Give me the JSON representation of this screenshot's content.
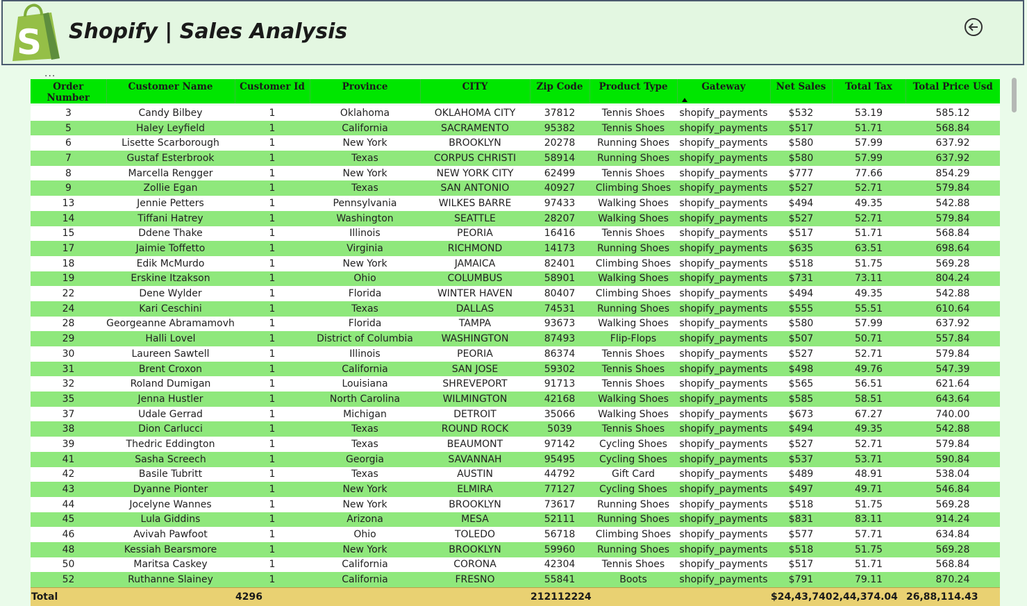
{
  "header": {
    "title": "Shopify | Sales Analysis",
    "logo_letter": "S"
  },
  "colors": {
    "header_bg": "#e3f7e1",
    "table_header_bg": "#00e600",
    "row_alt_bg": "#8fe87c",
    "total_bg": "#e9d172",
    "logo_green": "#95bf47"
  },
  "table": {
    "columns": [
      "Order Number",
      "Customer Name",
      "Customer Id",
      "Province",
      "CITY",
      "Zip Code",
      "Product Type",
      "Gateway",
      "Net Sales",
      "Total Tax",
      "Total Price Usd"
    ],
    "sorted_column": "Gateway",
    "rows": [
      [
        "3",
        "Candy Bilbey",
        "1",
        "Oklahoma",
        "OKLAHOMA CITY",
        "37812",
        "Tennis Shoes",
        "shopify_payments",
        "$532",
        "53.19",
        "585.12"
      ],
      [
        "5",
        "Haley Leyfield",
        "1",
        "California",
        "SACRAMENTO",
        "95382",
        "Tennis Shoes",
        "shopify_payments",
        "$517",
        "51.71",
        "568.84"
      ],
      [
        "6",
        "Lisette Scarborough",
        "1",
        "New York",
        "BROOKLYN",
        "20278",
        "Running Shoes",
        "shopify_payments",
        "$580",
        "57.99",
        "637.92"
      ],
      [
        "7",
        "Gustaf Esterbrook",
        "1",
        "Texas",
        "CORPUS CHRISTI",
        "58914",
        "Running Shoes",
        "shopify_payments",
        "$580",
        "57.99",
        "637.92"
      ],
      [
        "8",
        "Marcella Rengger",
        "1",
        "New York",
        "NEW YORK CITY",
        "62499",
        "Tennis Shoes",
        "shopify_payments",
        "$777",
        "77.66",
        "854.29"
      ],
      [
        "9",
        "Zollie Egan",
        "1",
        "Texas",
        "SAN ANTONIO",
        "40927",
        "Climbing Shoes",
        "shopify_payments",
        "$527",
        "52.71",
        "579.84"
      ],
      [
        "13",
        "Jennie Petters",
        "1",
        "Pennsylvania",
        "WILKES BARRE",
        "97433",
        "Walking Shoes",
        "shopify_payments",
        "$494",
        "49.35",
        "542.88"
      ],
      [
        "14",
        "Tiffani Hatrey",
        "1",
        "Washington",
        "SEATTLE",
        "28207",
        "Walking Shoes",
        "shopify_payments",
        "$527",
        "52.71",
        "579.84"
      ],
      [
        "15",
        "Ddene Thake",
        "1",
        "Illinois",
        "PEORIA",
        "16416",
        "Tennis Shoes",
        "shopify_payments",
        "$517",
        "51.71",
        "568.84"
      ],
      [
        "17",
        "Jaimie Toffetto",
        "1",
        "Virginia",
        "RICHMOND",
        "14173",
        "Running Shoes",
        "shopify_payments",
        "$635",
        "63.51",
        "698.64"
      ],
      [
        "18",
        "Edik McMurdo",
        "1",
        "New York",
        "JAMAICA",
        "82401",
        "Climbing Shoes",
        "shopify_payments",
        "$518",
        "51.75",
        "569.28"
      ],
      [
        "19",
        "Erskine Itzakson",
        "1",
        "Ohio",
        "COLUMBUS",
        "58901",
        "Walking Shoes",
        "shopify_payments",
        "$731",
        "73.11",
        "804.24"
      ],
      [
        "22",
        "Dene Wylder",
        "1",
        "Florida",
        "WINTER HAVEN",
        "80407",
        "Climbing Shoes",
        "shopify_payments",
        "$494",
        "49.35",
        "542.88"
      ],
      [
        "24",
        "Kari Ceschini",
        "1",
        "Texas",
        "DALLAS",
        "74531",
        "Running Shoes",
        "shopify_payments",
        "$555",
        "55.51",
        "610.64"
      ],
      [
        "28",
        "Georgeanne Abramamovh",
        "1",
        "Florida",
        "TAMPA",
        "93673",
        "Walking Shoes",
        "shopify_payments",
        "$580",
        "57.99",
        "637.92"
      ],
      [
        "29",
        "Halli Lovel",
        "1",
        "District of Columbia",
        "WASHINGTON",
        "87493",
        "Flip-Flops",
        "shopify_payments",
        "$507",
        "50.71",
        "557.84"
      ],
      [
        "30",
        "Laureen Sawtell",
        "1",
        "Illinois",
        "PEORIA",
        "86374",
        "Tennis Shoes",
        "shopify_payments",
        "$527",
        "52.71",
        "579.84"
      ],
      [
        "31",
        "Brent Croxon",
        "1",
        "California",
        "SAN JOSE",
        "59302",
        "Tennis Shoes",
        "shopify_payments",
        "$498",
        "49.76",
        "547.39"
      ],
      [
        "32",
        "Roland Dumigan",
        "1",
        "Louisiana",
        "SHREVEPORT",
        "91713",
        "Tennis Shoes",
        "shopify_payments",
        "$565",
        "56.51",
        "621.64"
      ],
      [
        "35",
        "Jenna Hustler",
        "1",
        "North Carolina",
        "WILMINGTON",
        "42168",
        "Walking Shoes",
        "shopify_payments",
        "$585",
        "58.51",
        "643.64"
      ],
      [
        "37",
        "Udale Gerrad",
        "1",
        "Michigan",
        "DETROIT",
        "35066",
        "Walking Shoes",
        "shopify_payments",
        "$673",
        "67.27",
        "740.00"
      ],
      [
        "38",
        "Dion Carlucci",
        "1",
        "Texas",
        "ROUND ROCK",
        "5039",
        "Tennis Shoes",
        "shopify_payments",
        "$494",
        "49.35",
        "542.88"
      ],
      [
        "39",
        "Thedric Eddington",
        "1",
        "Texas",
        "BEAUMONT",
        "97142",
        "Cycling Shoes",
        "shopify_payments",
        "$527",
        "52.71",
        "579.84"
      ],
      [
        "41",
        "Sasha Screech",
        "1",
        "Georgia",
        "SAVANNAH",
        "95495",
        "Cycling Shoes",
        "shopify_payments",
        "$537",
        "53.71",
        "590.84"
      ],
      [
        "42",
        "Basile Tubritt",
        "1",
        "Texas",
        "AUSTIN",
        "44792",
        "Gift Card",
        "shopify_payments",
        "$489",
        "48.91",
        "538.04"
      ],
      [
        "43",
        "Dyanne Pionter",
        "1",
        "New York",
        "ELMIRA",
        "77127",
        "Cycling Shoes",
        "shopify_payments",
        "$497",
        "49.71",
        "546.84"
      ],
      [
        "44",
        "Jocelyne Wannes",
        "1",
        "New York",
        "BROOKLYN",
        "73617",
        "Running Shoes",
        "shopify_payments",
        "$518",
        "51.75",
        "569.28"
      ],
      [
        "45",
        "Lula Giddins",
        "1",
        "Arizona",
        "MESA",
        "52111",
        "Running Shoes",
        "shopify_payments",
        "$831",
        "83.11",
        "914.24"
      ],
      [
        "46",
        "Avivah Pawfoot",
        "1",
        "Ohio",
        "TOLEDO",
        "56718",
        "Climbing Shoes",
        "shopify_payments",
        "$577",
        "57.71",
        "634.84"
      ],
      [
        "48",
        "Kessiah Bearsmore",
        "1",
        "New York",
        "BROOKLYN",
        "59960",
        "Running Shoes",
        "shopify_payments",
        "$518",
        "51.75",
        "569.28"
      ],
      [
        "50",
        "Maritsa Caskey",
        "1",
        "California",
        "CORONA",
        "42304",
        "Tennis Shoes",
        "shopify_payments",
        "$517",
        "51.71",
        "568.84"
      ],
      [
        "52",
        "Ruthanne Slainey",
        "1",
        "California",
        "FRESNO",
        "55841",
        "Boots",
        "shopify_payments",
        "$791",
        "79.11",
        "870.24"
      ]
    ],
    "total": [
      "Total",
      "",
      "4296",
      "",
      "",
      "212112224",
      "",
      "",
      "$24,43,740",
      "2,44,374.04",
      "26,88,114.43"
    ]
  }
}
